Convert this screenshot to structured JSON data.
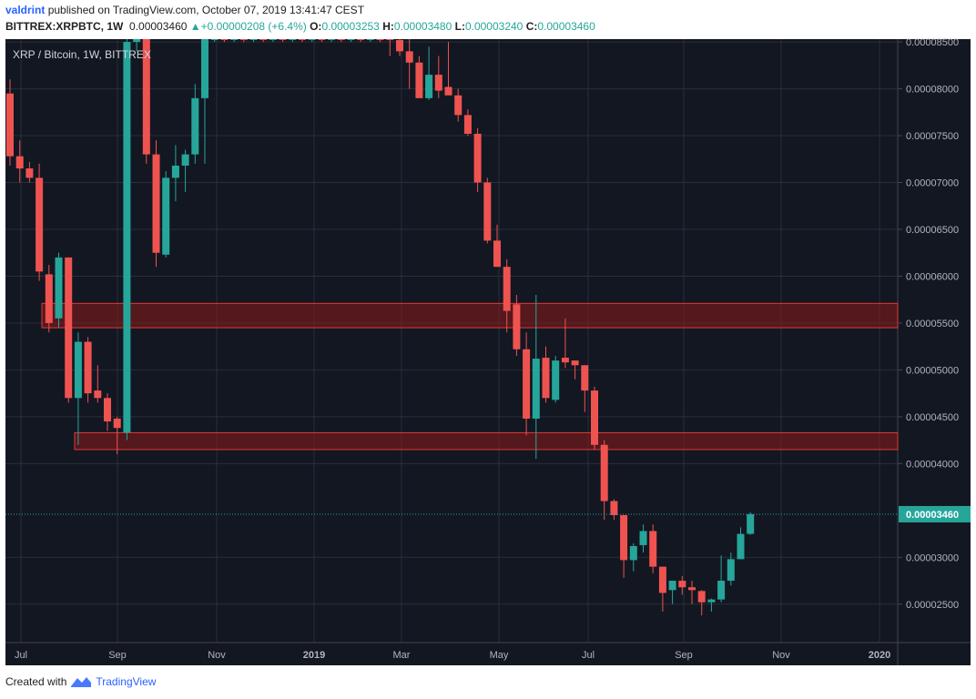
{
  "header": {
    "author": "valdrint",
    "published_text": "published on TradingView.com, October 07, 2019 13:41:47 CEST",
    "symbol": "BITTREX:XRPBTC, 1W",
    "last": "0.00003460",
    "change": "+0.00000208 (+6.4%)",
    "o_label": "O:",
    "o": "0.00003253",
    "h_label": "H:",
    "h": "0.00003480",
    "l_label": "L:",
    "l": "0.00003240",
    "c_label": "C:",
    "c": "0.00003460"
  },
  "footer": {
    "created_with": "Created with",
    "brand": "TradingView"
  },
  "colors": {
    "bg": "#131722",
    "grid": "#2a2e39",
    "up": "#26a69a",
    "down": "#ef5350",
    "zone": "#8b1a1a",
    "axis_text": "#b2b5be"
  },
  "chart_data": {
    "type": "candlestick",
    "title": "XRP / Bitcoin, 1W, BITTREX",
    "ylim": [
      2.09e-05,
      8.53e-05
    ],
    "y_ticks": [
      "0.00008500",
      "0.00008000",
      "0.00007500",
      "0.00007000",
      "0.00006500",
      "0.00006000",
      "0.00005500",
      "0.00005000",
      "0.00004500",
      "0.00004000",
      "0.00003000",
      "0.00002500"
    ],
    "x_ticks": [
      "Jul",
      "Sep",
      "Nov",
      "2019",
      "Mar",
      "May",
      "Jul",
      "Sep",
      "Nov",
      "2020"
    ],
    "last_price_label": "0.00003460",
    "zones": [
      {
        "from": 5.45e-05,
        "to": 5.71e-05
      },
      {
        "from": 4.15e-05,
        "to": 4.33e-05
      }
    ],
    "candles": [
      {
        "o": 7.95e-05,
        "h": 8.1e-05,
        "l": 7.18e-05,
        "c": 7.28e-05
      },
      {
        "o": 7.28e-05,
        "h": 7.45e-05,
        "l": 7e-05,
        "c": 7.15e-05
      },
      {
        "o": 7.15e-05,
        "h": 7.22e-05,
        "l": 7e-05,
        "c": 7.05e-05
      },
      {
        "o": 7.05e-05,
        "h": 7.2e-05,
        "l": 5.95e-05,
        "c": 6.05e-05
      },
      {
        "o": 6.02e-05,
        "h": 6.12e-05,
        "l": 5.4e-05,
        "c": 5.5e-05
      },
      {
        "o": 5.55e-05,
        "h": 6.25e-05,
        "l": 5.45e-05,
        "c": 6.2e-05
      },
      {
        "o": 6.2e-05,
        "h": 6.2e-05,
        "l": 4.65e-05,
        "c": 4.7e-05
      },
      {
        "o": 4.7e-05,
        "h": 5.4e-05,
        "l": 4.2e-05,
        "c": 5.3e-05
      },
      {
        "o": 5.3e-05,
        "h": 5.35e-05,
        "l": 4.65e-05,
        "c": 4.75e-05
      },
      {
        "o": 4.78e-05,
        "h": 5.05e-05,
        "l": 4.65e-05,
        "c": 4.7e-05
      },
      {
        "o": 4.7e-05,
        "h": 4.75e-05,
        "l": 4.35e-05,
        "c": 4.45e-05
      },
      {
        "o": 4.48e-05,
        "h": 4.5e-05,
        "l": 4.1e-05,
        "c": 4.38e-05
      },
      {
        "o": 4.33e-05,
        "h": 8.6e-05,
        "l": 4.25e-05,
        "c": 8.5e-05
      },
      {
        "o": 8.5e-05,
        "h": 8.65e-05,
        "l": 8.4e-05,
        "c": 8.58e-05
      },
      {
        "o": 8.58e-05,
        "h": 8.65e-05,
        "l": 7.2e-05,
        "c": 7.3e-05
      },
      {
        "o": 7.3e-05,
        "h": 7.45e-05,
        "l": 6.1e-05,
        "c": 6.25e-05
      },
      {
        "o": 6.23e-05,
        "h": 7.12e-05,
        "l": 6.2e-05,
        "c": 7.05e-05
      },
      {
        "o": 7.05e-05,
        "h": 7.4e-05,
        "l": 6.8e-05,
        "c": 7.18e-05
      },
      {
        "o": 7.18e-05,
        "h": 7.35e-05,
        "l": 6.9e-05,
        "c": 7.3e-05
      },
      {
        "o": 7.3e-05,
        "h": 8.05e-05,
        "l": 7.2e-05,
        "c": 7.9e-05
      },
      {
        "o": 7.9e-05,
        "h": 8.65e-05,
        "l": 7.2e-05,
        "c": 8.6e-05
      },
      {
        "o": 8.55e-05,
        "h": 8.65e-05,
        "l": 8.5e-05,
        "c": 8.6e-05
      },
      {
        "o": 8.6e-05,
        "h": 8.65e-05,
        "l": 8.5e-05,
        "c": 8.55e-05
      },
      {
        "o": 8.55e-05,
        "h": 8.65e-05,
        "l": 8.5e-05,
        "c": 8.6e-05
      },
      {
        "o": 8.6e-05,
        "h": 8.65e-05,
        "l": 8.5e-05,
        "c": 8.55e-05
      },
      {
        "o": 8.55e-05,
        "h": 8.65e-05,
        "l": 8.5e-05,
        "c": 8.6e-05
      },
      {
        "o": 8.6e-05,
        "h": 8.65e-05,
        "l": 8.5e-05,
        "c": 8.55e-05
      },
      {
        "o": 8.55e-05,
        "h": 8.65e-05,
        "l": 8.5e-05,
        "c": 8.6e-05
      },
      {
        "o": 8.6e-05,
        "h": 8.65e-05,
        "l": 8.5e-05,
        "c": 8.55e-05
      },
      {
        "o": 8.55e-05,
        "h": 8.65e-05,
        "l": 8.5e-05,
        "c": 8.6e-05
      },
      {
        "o": 8.6e-05,
        "h": 8.65e-05,
        "l": 8.5e-05,
        "c": 8.55e-05
      },
      {
        "o": 8.55e-05,
        "h": 8.65e-05,
        "l": 8.5e-05,
        "c": 8.6e-05
      },
      {
        "o": 8.6e-05,
        "h": 8.65e-05,
        "l": 8.5e-05,
        "c": 8.55e-05
      },
      {
        "o": 8.55e-05,
        "h": 8.65e-05,
        "l": 8.5e-05,
        "c": 8.6e-05
      },
      {
        "o": 8.6e-05,
        "h": 8.65e-05,
        "l": 8.5e-05,
        "c": 8.55e-05
      },
      {
        "o": 8.55e-05,
        "h": 8.65e-05,
        "l": 8.5e-05,
        "c": 8.6e-05
      },
      {
        "o": 8.6e-05,
        "h": 8.65e-05,
        "l": 8.5e-05,
        "c": 8.55e-05
      },
      {
        "o": 8.55e-05,
        "h": 8.65e-05,
        "l": 8.5e-05,
        "c": 8.6e-05
      },
      {
        "o": 8.6e-05,
        "h": 8.65e-05,
        "l": 8.5e-05,
        "c": 8.55e-05
      },
      {
        "o": 8.58e-05,
        "h": 8.62e-05,
        "l": 8.35e-05,
        "c": 8.52e-05
      },
      {
        "o": 8.52e-05,
        "h": 8.6e-05,
        "l": 8.35e-05,
        "c": 8.4e-05
      },
      {
        "o": 8.4e-05,
        "h": 8.55e-05,
        "l": 8e-05,
        "c": 8.28e-05
      },
      {
        "o": 8.28e-05,
        "h": 8.35e-05,
        "l": 7.95e-05,
        "c": 7.9e-05
      },
      {
        "o": 7.9e-05,
        "h": 8.45e-05,
        "l": 7.88e-05,
        "c": 8.15e-05
      },
      {
        "o": 8.15e-05,
        "h": 8.35e-05,
        "l": 7.9e-05,
        "c": 7.98e-05
      },
      {
        "o": 8.02e-05,
        "h": 8.5e-05,
        "l": 7.95e-05,
        "c": 7.93e-05
      },
      {
        "o": 7.93e-05,
        "h": 8e-05,
        "l": 7.65e-05,
        "c": 7.72e-05
      },
      {
        "o": 7.72e-05,
        "h": 7.78e-05,
        "l": 7.5e-05,
        "c": 7.52e-05
      },
      {
        "o": 7.52e-05,
        "h": 7.58e-05,
        "l": 6.9e-05,
        "c": 7e-05
      },
      {
        "o": 7e-05,
        "h": 7.05e-05,
        "l": 6.35e-05,
        "c": 6.38e-05
      },
      {
        "o": 6.38e-05,
        "h": 6.55e-05,
        "l": 6.1e-05,
        "c": 6.1e-05
      },
      {
        "o": 6.1e-05,
        "h": 6.18e-05,
        "l": 5.4e-05,
        "c": 5.63e-05
      },
      {
        "o": 5.7e-05,
        "h": 5.8e-05,
        "l": 5.15e-05,
        "c": 5.22e-05
      },
      {
        "o": 5.22e-05,
        "h": 5.4e-05,
        "l": 4.3e-05,
        "c": 4.48e-05
      },
      {
        "o": 4.48e-05,
        "h": 5.8e-05,
        "l": 4.05e-05,
        "c": 5.12e-05
      },
      {
        "o": 5.13e-05,
        "h": 5.25e-05,
        "l": 4.65e-05,
        "c": 4.7e-05
      },
      {
        "o": 4.68e-05,
        "h": 5.15e-05,
        "l": 4.65e-05,
        "c": 5.1e-05
      },
      {
        "o": 5.13e-05,
        "h": 5.55e-05,
        "l": 5.02e-05,
        "c": 5.08e-05
      },
      {
        "o": 5.1e-05,
        "h": 5.1e-05,
        "l": 4.9e-05,
        "c": 5.05e-05
      },
      {
        "o": 5.05e-05,
        "h": 5.05e-05,
        "l": 4.55e-05,
        "c": 4.78e-05
      },
      {
        "o": 4.78e-05,
        "h": 4.82e-05,
        "l": 4.15e-05,
        "c": 4.2e-05
      },
      {
        "o": 4.2e-05,
        "h": 4.25e-05,
        "l": 3.4e-05,
        "c": 3.6e-05
      },
      {
        "o": 3.6e-05,
        "h": 3.62e-05,
        "l": 3.4e-05,
        "c": 3.45e-05
      },
      {
        "o": 3.45e-05,
        "h": 3.45e-05,
        "l": 2.78e-05,
        "c": 2.97e-05
      },
      {
        "o": 2.97e-05,
        "h": 3.15e-05,
        "l": 2.85e-05,
        "c": 3.12e-05
      },
      {
        "o": 3.13e-05,
        "h": 3.35e-05,
        "l": 3.05e-05,
        "c": 3.28e-05
      },
      {
        "o": 3.28e-05,
        "h": 3.35e-05,
        "l": 2.83e-05,
        "c": 2.9e-05
      },
      {
        "o": 2.9e-05,
        "h": 2.9e-05,
        "l": 2.42e-05,
        "c": 2.62e-05
      },
      {
        "o": 2.65e-05,
        "h": 2.75e-05,
        "l": 2.5e-05,
        "c": 2.75e-05
      },
      {
        "o": 2.75e-05,
        "h": 2.8e-05,
        "l": 2.6e-05,
        "c": 2.68e-05
      },
      {
        "o": 2.68e-05,
        "h": 2.75e-05,
        "l": 2.5e-05,
        "c": 2.65e-05
      },
      {
        "o": 2.64e-05,
        "h": 2.65e-05,
        "l": 2.38e-05,
        "c": 2.52e-05
      },
      {
        "o": 2.52e-05,
        "h": 2.56e-05,
        "l": 2.42e-05,
        "c": 2.55e-05
      },
      {
        "o": 2.55e-05,
        "h": 3.02e-05,
        "l": 2.52e-05,
        "c": 2.75e-05
      },
      {
        "o": 2.75e-05,
        "h": 3.05e-05,
        "l": 2.7e-05,
        "c": 2.98e-05
      },
      {
        "o": 2.98e-05,
        "h": 3.32e-05,
        "l": 2.98e-05,
        "c": 3.25e-05
      },
      {
        "o": 3.25e-05,
        "h": 3.48e-05,
        "l": 3.24e-05,
        "c": 3.46e-05
      }
    ]
  }
}
